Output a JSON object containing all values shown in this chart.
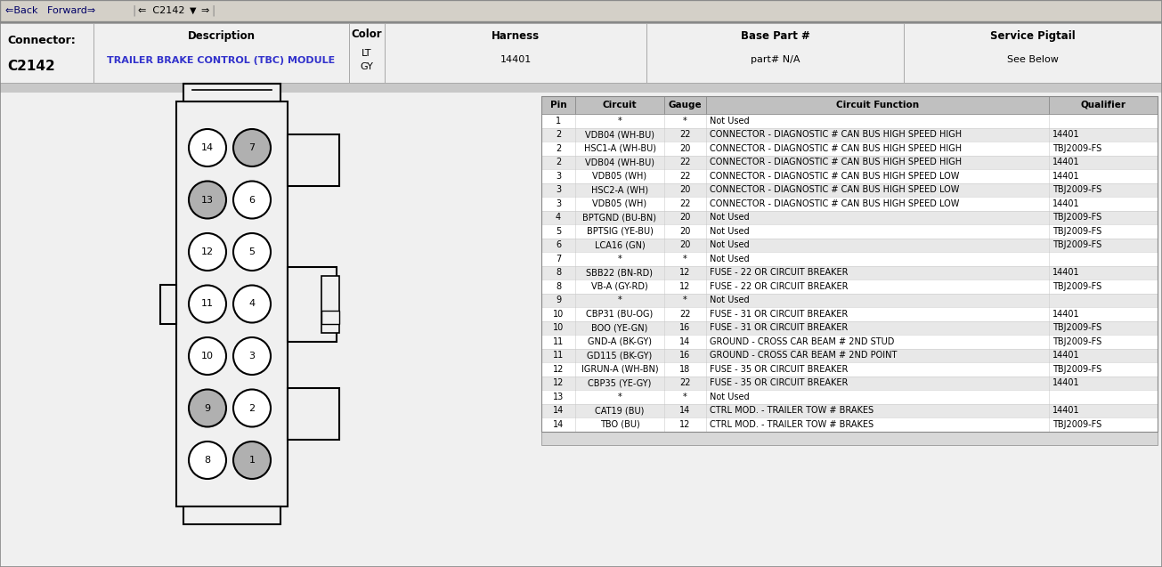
{
  "bg_color": "#ffffff",
  "nav_bg": "#d4d0c8",
  "nav_border": "#808080",
  "header_bg": "#f0f0f0",
  "header_border": "#aaaaaa",
  "sep_color": "#c0c0c0",
  "content_bg": "#f0f0f0",
  "connector_fill": "#f0f0f0",
  "connector_stroke": "#000000",
  "pin_white_fill": "#ffffff",
  "pin_gray_fill": "#b0b0b0",
  "tbl_header_bg": "#c8c8c8",
  "tbl_row_alt1": "#e8e8e8",
  "tbl_row_alt2": "#ffffff",
  "tbl_border": "#999999",
  "tbl_line": "#cccccc",
  "blue_text": "#3333cc",
  "black_text": "#000000",
  "nav_text_color": "#000000",
  "connector_label": "Connector:",
  "connector_id": "C2142",
  "desc_header": "Description",
  "desc_value": "TRAILER BRAKE CONTROL (TBC) MODULE",
  "color_header": "Color",
  "color_value1": "LT",
  "color_value2": "GY",
  "harness_header": "Harness",
  "harness_value": "14401",
  "base_part_header": "Base Part #",
  "base_part_value": "part# N/A",
  "service_header": "Service Pigtail",
  "service_value": "See Below",
  "table_columns": [
    "Pin",
    "Circuit",
    "Gauge",
    "Circuit Function",
    "Qualifier"
  ],
  "gray_pins": [
    1,
    7,
    9,
    13
  ],
  "left_pins": [
    14,
    13,
    12,
    11,
    10,
    9,
    8
  ],
  "right_pins": [
    7,
    6,
    5,
    4,
    3,
    2,
    1
  ],
  "table_rows": [
    [
      "1",
      "*",
      "*",
      "Not Used",
      "",
      false
    ],
    [
      "2",
      "VDB04 (WH-BU)",
      "22",
      "CONNECTOR - DIAGNOSTIC # CAN BUS HIGH SPEED HIGH",
      "14401",
      true
    ],
    [
      "2",
      "HSC1-A (WH-BU)",
      "20",
      "CONNECTOR - DIAGNOSTIC # CAN BUS HIGH SPEED HIGH",
      "TBJ2009-FS",
      false
    ],
    [
      "2",
      "VDB04 (WH-BU)",
      "22",
      "CONNECTOR - DIAGNOSTIC # CAN BUS HIGH SPEED HIGH",
      "14401",
      true
    ],
    [
      "3",
      "VDB05 (WH)",
      "22",
      "CONNECTOR - DIAGNOSTIC # CAN BUS HIGH SPEED LOW",
      "14401",
      false
    ],
    [
      "3",
      "HSC2-A (WH)",
      "20",
      "CONNECTOR - DIAGNOSTIC # CAN BUS HIGH SPEED LOW",
      "TBJ2009-FS",
      true
    ],
    [
      "3",
      "VDB05 (WH)",
      "22",
      "CONNECTOR - DIAGNOSTIC # CAN BUS HIGH SPEED LOW",
      "14401",
      false
    ],
    [
      "4",
      "BPTGND (BU-BN)",
      "20",
      "Not Used",
      "TBJ2009-FS",
      true
    ],
    [
      "5",
      "BPTSIG (YE-BU)",
      "20",
      "Not Used",
      "TBJ2009-FS",
      false
    ],
    [
      "6",
      "LCA16 (GN)",
      "20",
      "Not Used",
      "TBJ2009-FS",
      true
    ],
    [
      "7",
      "*",
      "*",
      "Not Used",
      "",
      false
    ],
    [
      "8",
      "SBB22 (BN-RD)",
      "12",
      "FUSE - 22 OR CIRCUIT BREAKER",
      "14401",
      true
    ],
    [
      "8",
      "VB-A (GY-RD)",
      "12",
      "FUSE - 22 OR CIRCUIT BREAKER",
      "TBJ2009-FS",
      false
    ],
    [
      "9",
      "*",
      "*",
      "Not Used",
      "",
      true
    ],
    [
      "10",
      "CBP31 (BU-OG)",
      "22",
      "FUSE - 31 OR CIRCUIT BREAKER",
      "14401",
      false
    ],
    [
      "10",
      "BOO (YE-GN)",
      "16",
      "FUSE - 31 OR CIRCUIT BREAKER",
      "TBJ2009-FS",
      true
    ],
    [
      "11",
      "GND-A (BK-GY)",
      "14",
      "GROUND - CROSS CAR BEAM # 2ND STUD",
      "TBJ2009-FS",
      false
    ],
    [
      "11",
      "GD115 (BK-GY)",
      "16",
      "GROUND - CROSS CAR BEAM # 2ND POINT",
      "14401",
      true
    ],
    [
      "12",
      "IGRUN-A (WH-BN)",
      "18",
      "FUSE - 35 OR CIRCUIT BREAKER",
      "TBJ2009-FS",
      false
    ],
    [
      "12",
      "CBP35 (YE-GY)",
      "22",
      "FUSE - 35 OR CIRCUIT BREAKER",
      "14401",
      true
    ],
    [
      "13",
      "*",
      "*",
      "Not Used",
      "",
      false
    ],
    [
      "14",
      "CAT19 (BU)",
      "14",
      "CTRL MOD. - TRAILER TOW # BRAKES",
      "14401",
      true
    ],
    [
      "14",
      "TBO (BU)",
      "12",
      "CTRL MOD. - TRAILER TOW # BRAKES",
      "TBJ2009-FS",
      false
    ]
  ]
}
